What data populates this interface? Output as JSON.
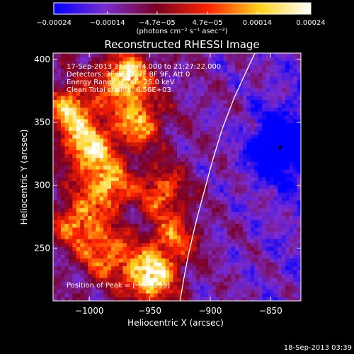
{
  "chart_data": {
    "type": "heatmap",
    "title": "Reconstructed RHESSI Image",
    "xlabel": "Heliocentric X (arcsec)",
    "ylabel": "Heliocentric Y (arcsec)",
    "xlim": [
      -1030,
      -825
    ],
    "ylim": [
      208,
      405
    ],
    "x_ticks": [
      -1000,
      -950,
      -900,
      -850
    ],
    "x_tick_labels": [
      "−1000",
      "−950",
      "−900",
      "−850"
    ],
    "y_ticks": [
      250,
      300,
      350,
      400
    ],
    "y_tick_labels": [
      "250",
      "300",
      "350",
      "400"
    ],
    "colorbar": {
      "min": -0.00024,
      "max": 0.00024,
      "ticks": [
        -0.00024,
        -0.00014,
        -4.7e-05,
        4.7e-05,
        0.00014,
        0.00024
      ],
      "tick_labels": [
        "−0.00024",
        "−0.00014",
        "−4.7e−05",
        "4.7e−05",
        "0.00014",
        "0.00024"
      ],
      "unit": "(photons cm⁻² s⁻¹ asec⁻²)",
      "colormap": [
        "#0000ff",
        "#7a2ccf",
        "#7a0022",
        "#ff2200",
        "#ffd21a",
        "#ffffff"
      ]
    },
    "annotations": [
      "17-Sep-2013 21:23:44.000 to 21:27:22.000",
      "Detectors: 3F 5F 6F 7F 8F 9F, Att 0",
      "Energy Range: 12.0 - 25.0 keV",
      "Clean    Total counts: 6.56E+03"
    ],
    "peak_label": "Position of Peak = [-942,233]",
    "limb_curve": [
      [
        -925,
        208
      ],
      [
        -922,
        225
      ],
      [
        -918,
        245
      ],
      [
        -912,
        270
      ],
      [
        -905,
        295
      ],
      [
        -898,
        320
      ],
      [
        -890,
        345
      ],
      [
        -880,
        370
      ],
      [
        -868,
        395
      ],
      [
        -863,
        405
      ]
    ],
    "sources": [
      {
        "x": -970,
        "y": 385,
        "value": 0.00022
      },
      {
        "x": -1015,
        "y": 360,
        "value": 0.00016
      },
      {
        "x": -1000,
        "y": 330,
        "value": 0.00018
      },
      {
        "x": -985,
        "y": 300,
        "value": 0.00015
      },
      {
        "x": -1010,
        "y": 270,
        "value": 0.00012
      },
      {
        "x": -950,
        "y": 228,
        "value": 0.00024
      },
      {
        "x": -985,
        "y": 245,
        "value": 0.00011
      },
      {
        "x": -960,
        "y": 350,
        "value": 0.00013
      },
      {
        "x": -940,
        "y": 295,
        "value": 8e-05
      },
      {
        "x": -930,
        "y": 258,
        "value": 7e-05
      }
    ],
    "peak": {
      "x": -942,
      "y": 233
    },
    "marked_point": {
      "x": -842,
      "y": 330
    }
  },
  "footer_timestamp": "18-Sep-2013 03:39"
}
